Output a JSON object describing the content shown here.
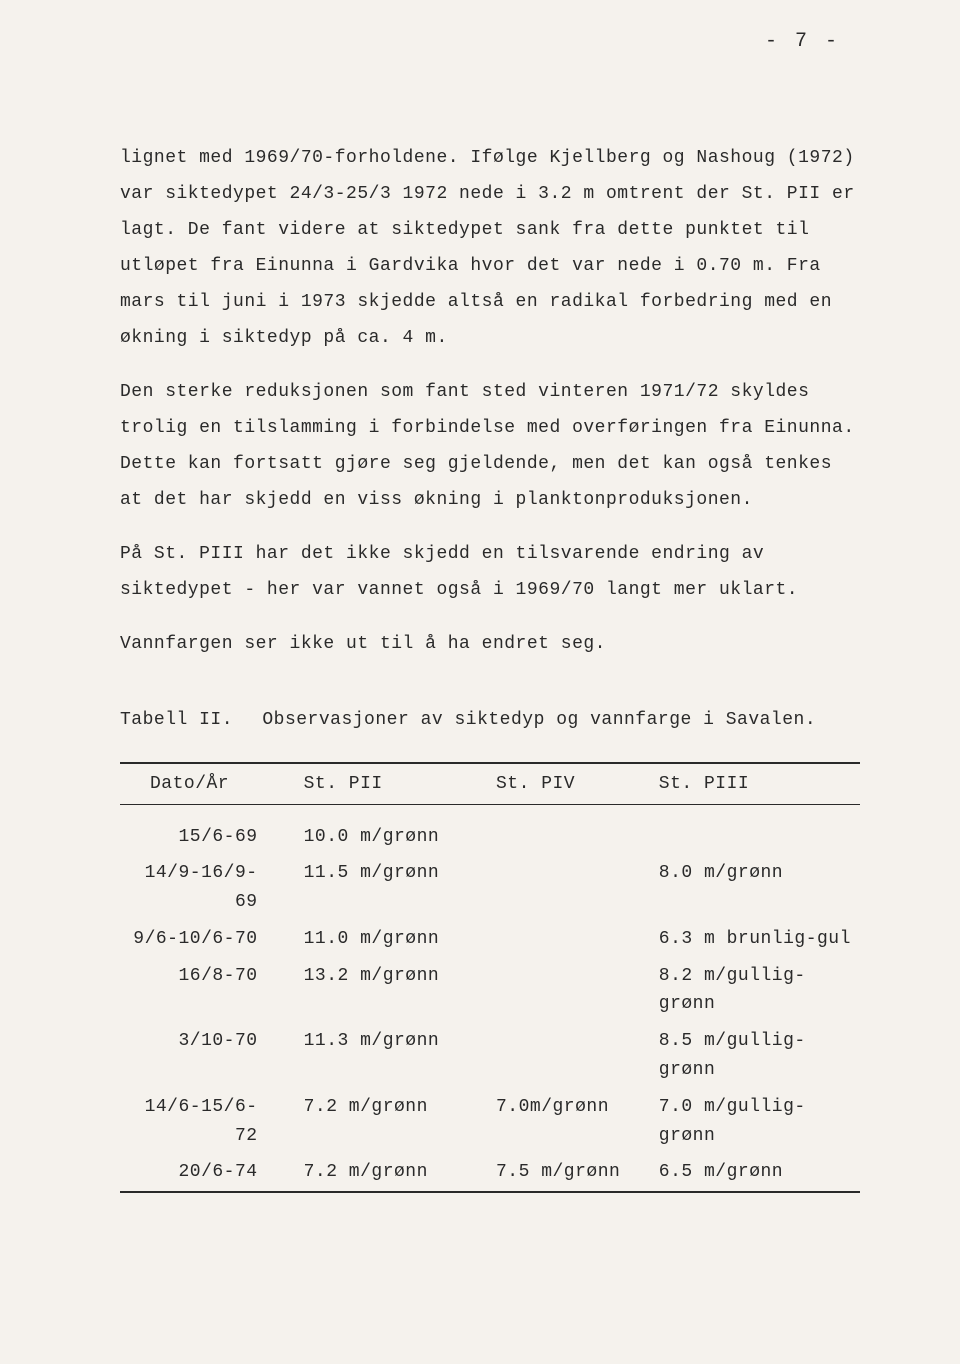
{
  "page_number": "- 7 -",
  "paragraphs": [
    "lignet med 1969/70-forholdene.  Ifølge Kjellberg og Nashoug (1972) var siktedypet 24/3-25/3 1972 nede i 3.2 m omtrent der St. PII er lagt.  De fant videre at siktedypet sank fra dette punktet til utløpet fra Einunna i Gardvika hvor det var nede i 0.70 m.  Fra mars til juni i 1973 skjedde altså en radikal forbedring med en økning i siktedyp på ca. 4 m.",
    "Den sterke reduksjonen som fant sted vinteren 1971/72 skyldes trolig en tilslamming i forbindelse med overføringen fra Einunna.  Dette kan fortsatt gjøre seg gjeldende, men det kan også tenkes at det har skjedd en viss økning i planktonproduksjonen.",
    "På St. PIII har det ikke skjedd en tilsvarende endring av siktedypet - her var vannet også i 1969/70 langt mer uklart.",
    "Vannfargen ser ikke ut til å ha endret seg."
  ],
  "table": {
    "label": "Tabell II.",
    "caption": "Observasjoner av siktedyp og vannfarge i Savalen.",
    "columns": [
      "Dato/År",
      "St. PII",
      "St. PIV",
      "St. PIII"
    ],
    "rows": [
      {
        "date": "15/6-69",
        "pii": "10.0 m/grønn",
        "piv": "",
        "piii": ""
      },
      {
        "date": "14/9-16/9-69",
        "pii": "11.5 m/grønn",
        "piv": "",
        "piii": "8.0 m/grønn"
      },
      {
        "date": "9/6-10/6-70",
        "pii": "11.0 m/grønn",
        "piv": "",
        "piii": "6.3 m brunlig-gul"
      },
      {
        "date": "16/8-70",
        "pii": "13.2 m/grønn",
        "piv": "",
        "piii": "8.2 m/gullig-grønn"
      },
      {
        "date": "3/10-70",
        "pii": "11.3 m/grønn",
        "piv": "",
        "piii": "8.5 m/gullig-grønn"
      },
      {
        "date": "14/6-15/6-72",
        "pii": "7.2 m/grønn",
        "piv": "7.0m/grønn",
        "piii": "7.0 m/gullig-grønn"
      },
      {
        "date": "20/6-74",
        "pii": "7.2 m/grønn",
        "piv": "7.5 m/grønn",
        "piii": "6.5 m/grønn"
      }
    ]
  }
}
